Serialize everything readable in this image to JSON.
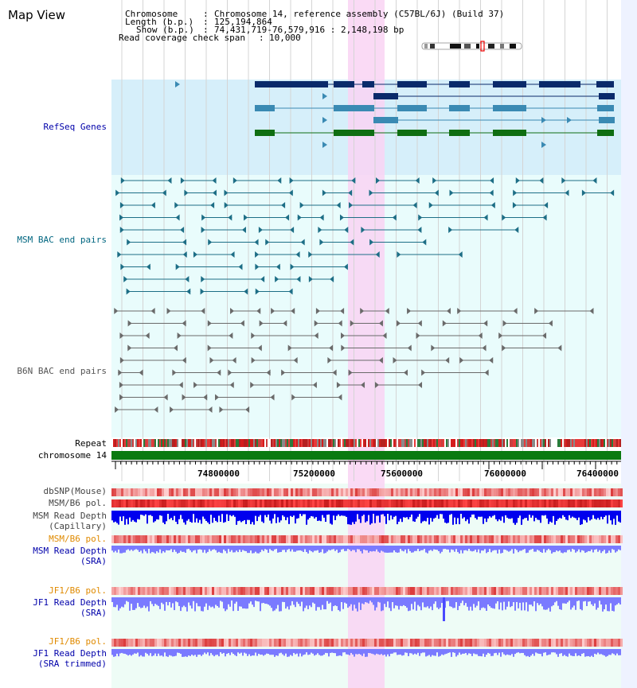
{
  "page": {
    "title": "Map View"
  },
  "header": {
    "chromosome_key": "Chromosome",
    "chromosome_val": "Chromosome 14, reference assembly (C57BL/6J) (Build 37)",
    "length_key": "Length (b.p.)",
    "length_val": "125,194,864",
    "show_key": "Show (b.p.)",
    "show_val": "74,431,719-76,579,916 : 2,148,198 bp",
    "coverage_key": "Read coverage check span",
    "coverage_val": "10,000"
  },
  "tracks": {
    "refseq": "RefSeq Genes",
    "msm_bac": "MSM BAC end pairs",
    "b6n_bac": "B6N BAC end pairs",
    "repeat": "Repeat",
    "chromosome": "chromosome 14",
    "dbsnp": "dbSNP(Mouse)",
    "msm_b6_pol_1": "MSM/B6 pol.",
    "msm_read_depth_cap_1": "MSM Read Depth",
    "msm_read_depth_cap_2": "(Capillary)",
    "msm_b6_pol_2": "MSM/B6 pol.",
    "msm_read_depth_sra_1": "MSM Read Depth",
    "msm_read_depth_sra_2": "(SRA)",
    "jf1_b6_pol_1": "JF1/B6 pol.",
    "jf1_read_depth_sra_1": "JF1 Read Depth",
    "jf1_read_depth_sra_2": "(SRA)",
    "jf1_b6_pol_2": "JF1/B6 pol.",
    "jf1_read_depth_trim_1": "JF1 Read Depth",
    "jf1_read_depth_trim_2": "(SRA trimmed)"
  },
  "axis": {
    "ticks": [
      "74800000",
      "75200000",
      "75600000",
      "76000000",
      "76400000"
    ]
  },
  "colors": {
    "highlight": "#f9d3f3",
    "refseq_bg": "#d6effa",
    "bac_bg": "#e6fbfb",
    "gene_dark": "#0a2a6a",
    "gene_mid": "#3a8ab3",
    "gene_green": "#0f6e12",
    "msm_pair": "#1d6e86",
    "b6n_pair": "#6a6a6a",
    "depth_blue": "#0000ee",
    "depth_light": "#7a7aff",
    "chrom_green": "#0a7a10"
  }
}
